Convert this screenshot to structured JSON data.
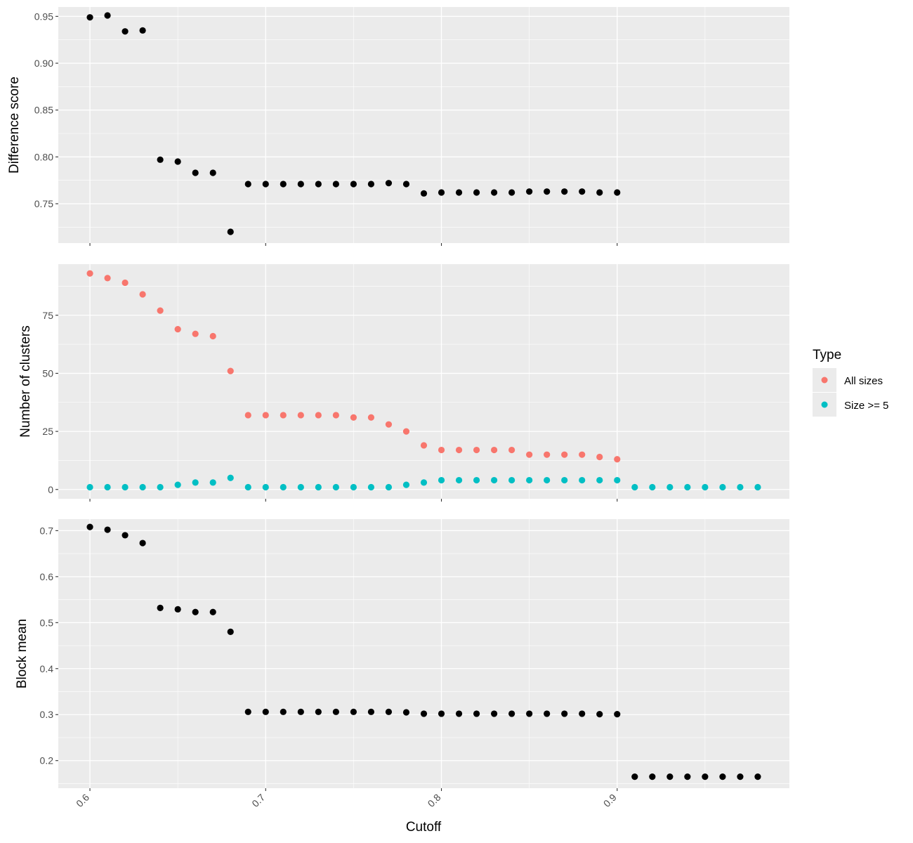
{
  "chart_data": {
    "type": "scatter",
    "xlabel": "Cutoff",
    "x_ticks": [
      0.6,
      0.7,
      0.8,
      0.9
    ],
    "x_tick_labels": [
      "0.6",
      "0.7",
      "0.8",
      "0.9"
    ],
    "xlim": [
      0.582,
      0.998
    ],
    "panels": [
      {
        "ylabel": "Difference score",
        "ylim": [
          0.708,
          0.96
        ],
        "y_ticks": [
          0.75,
          0.8,
          0.85,
          0.9,
          0.95
        ],
        "y_tick_labels": [
          "0.75",
          "0.80",
          "0.85",
          "0.90",
          "0.95"
        ],
        "series": [
          {
            "color": "#000000",
            "x": [
              0.6,
              0.61,
              0.62,
              0.63,
              0.64,
              0.65,
              0.66,
              0.67,
              0.68,
              0.69,
              0.7,
              0.71,
              0.72,
              0.73,
              0.74,
              0.75,
              0.76,
              0.77,
              0.78,
              0.79,
              0.8,
              0.81,
              0.82,
              0.83,
              0.84,
              0.85,
              0.86,
              0.87,
              0.88,
              0.89,
              0.9
            ],
            "values": [
              0.949,
              0.951,
              0.934,
              0.935,
              0.797,
              0.795,
              0.783,
              0.783,
              0.72,
              0.771,
              0.771,
              0.771,
              0.771,
              0.771,
              0.771,
              0.771,
              0.771,
              0.772,
              0.771,
              0.761,
              0.762,
              0.762,
              0.762,
              0.762,
              0.762,
              0.763,
              0.763,
              0.763,
              0.763,
              0.762,
              0.762
            ]
          }
        ]
      },
      {
        "ylabel": "Number of clusters",
        "ylim": [
          -4,
          97
        ],
        "y_ticks": [
          0,
          25,
          50,
          75
        ],
        "y_tick_labels": [
          "0",
          "25",
          "50",
          "75"
        ],
        "series": [
          {
            "name": "All sizes",
            "color": "#F8766D",
            "x": [
              0.6,
              0.61,
              0.62,
              0.63,
              0.64,
              0.65,
              0.66,
              0.67,
              0.68,
              0.69,
              0.7,
              0.71,
              0.72,
              0.73,
              0.74,
              0.75,
              0.76,
              0.77,
              0.78,
              0.79,
              0.8,
              0.81,
              0.82,
              0.83,
              0.84,
              0.85,
              0.86,
              0.87,
              0.88,
              0.89,
              0.9
            ],
            "values": [
              93,
              91,
              89,
              84,
              77,
              69,
              67,
              66,
              51,
              32,
              32,
              32,
              32,
              32,
              32,
              31,
              31,
              28,
              25,
              19,
              17,
              17,
              17,
              17,
              17,
              15,
              15,
              15,
              15,
              14,
              13
            ]
          },
          {
            "name": "Size >= 5",
            "color": "#00BFC4",
            "x": [
              0.6,
              0.61,
              0.62,
              0.63,
              0.64,
              0.65,
              0.66,
              0.67,
              0.68,
              0.69,
              0.7,
              0.71,
              0.72,
              0.73,
              0.74,
              0.75,
              0.76,
              0.77,
              0.78,
              0.79,
              0.8,
              0.81,
              0.82,
              0.83,
              0.84,
              0.85,
              0.86,
              0.87,
              0.88,
              0.89,
              0.9,
              0.91,
              0.92,
              0.93,
              0.94,
              0.95,
              0.96,
              0.97,
              0.98
            ],
            "values": [
              1,
              1,
              1,
              1,
              1,
              2,
              3,
              3,
              5,
              1,
              1,
              1,
              1,
              1,
              1,
              1,
              1,
              1,
              2,
              3,
              4,
              4,
              4,
              4,
              4,
              4,
              4,
              4,
              4,
              4,
              4,
              1,
              1,
              1,
              1,
              1,
              1,
              1,
              1
            ]
          }
        ]
      },
      {
        "ylabel": "Block mean",
        "ylim": [
          0.14,
          0.725
        ],
        "y_ticks": [
          0.2,
          0.3,
          0.4,
          0.5,
          0.6,
          0.7
        ],
        "y_tick_labels": [
          "0.2",
          "0.3",
          "0.4",
          "0.5",
          "0.6",
          "0.7"
        ],
        "series": [
          {
            "color": "#000000",
            "x": [
              0.6,
              0.61,
              0.62,
              0.63,
              0.64,
              0.65,
              0.66,
              0.67,
              0.68,
              0.69,
              0.7,
              0.71,
              0.72,
              0.73,
              0.74,
              0.75,
              0.76,
              0.77,
              0.78,
              0.79,
              0.8,
              0.81,
              0.82,
              0.83,
              0.84,
              0.85,
              0.86,
              0.87,
              0.88,
              0.89,
              0.9,
              0.91,
              0.92,
              0.93,
              0.94,
              0.95,
              0.96,
              0.97,
              0.98
            ],
            "values": [
              0.708,
              0.702,
              0.69,
              0.673,
              0.532,
              0.529,
              0.523,
              0.523,
              0.48,
              0.306,
              0.306,
              0.306,
              0.306,
              0.306,
              0.306,
              0.306,
              0.306,
              0.306,
              0.305,
              0.302,
              0.302,
              0.302,
              0.302,
              0.302,
              0.302,
              0.302,
              0.302,
              0.302,
              0.302,
              0.301,
              0.301,
              0.165,
              0.165,
              0.165,
              0.165,
              0.165,
              0.165,
              0.165,
              0.165
            ]
          }
        ]
      }
    ],
    "legend": {
      "title": "Type",
      "placement": "right",
      "entries": [
        {
          "label": "All sizes",
          "color": "#F8766D"
        },
        {
          "label": "Size >= 5",
          "color": "#00BFC4"
        }
      ]
    },
    "grid": true,
    "background": "#EBEBEB",
    "gridline_color": "#FFFFFF"
  }
}
